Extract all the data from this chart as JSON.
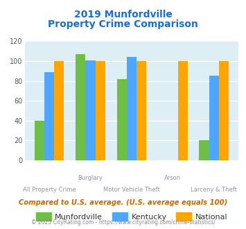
{
  "title_line1": "2019 Munfordville",
  "title_line2": "Property Crime Comparison",
  "categories": [
    "All Property Crime",
    "Burglary",
    "Motor Vehicle Theft",
    "Arson",
    "Larceny & Theft"
  ],
  "stagger_labels": [
    false,
    true,
    false,
    true,
    false
  ],
  "munfordville": [
    40,
    107,
    82,
    0,
    20
  ],
  "kentucky": [
    89,
    101,
    104,
    0,
    85
  ],
  "national": [
    100,
    100,
    100,
    100,
    100
  ],
  "munfordville_color": "#6dbf45",
  "kentucky_color": "#4da6ff",
  "national_color": "#ffa500",
  "ylim": [
    0,
    120
  ],
  "yticks": [
    0,
    20,
    40,
    60,
    80,
    100,
    120
  ],
  "background_color": "#ddeef5",
  "title_color": "#1a6ecc",
  "xlabel_color": "#9b8fa8",
  "footer_color": "#cc6600",
  "copyright_color": "#888888",
  "footer_text": "Compared to U.S. average. (U.S. average equals 100)",
  "copyright_text": "© 2025 CityRating.com - https://www.cityrating.com/crime-statistics/",
  "legend_labels": [
    "Munfordville",
    "Kentucky",
    "National"
  ]
}
